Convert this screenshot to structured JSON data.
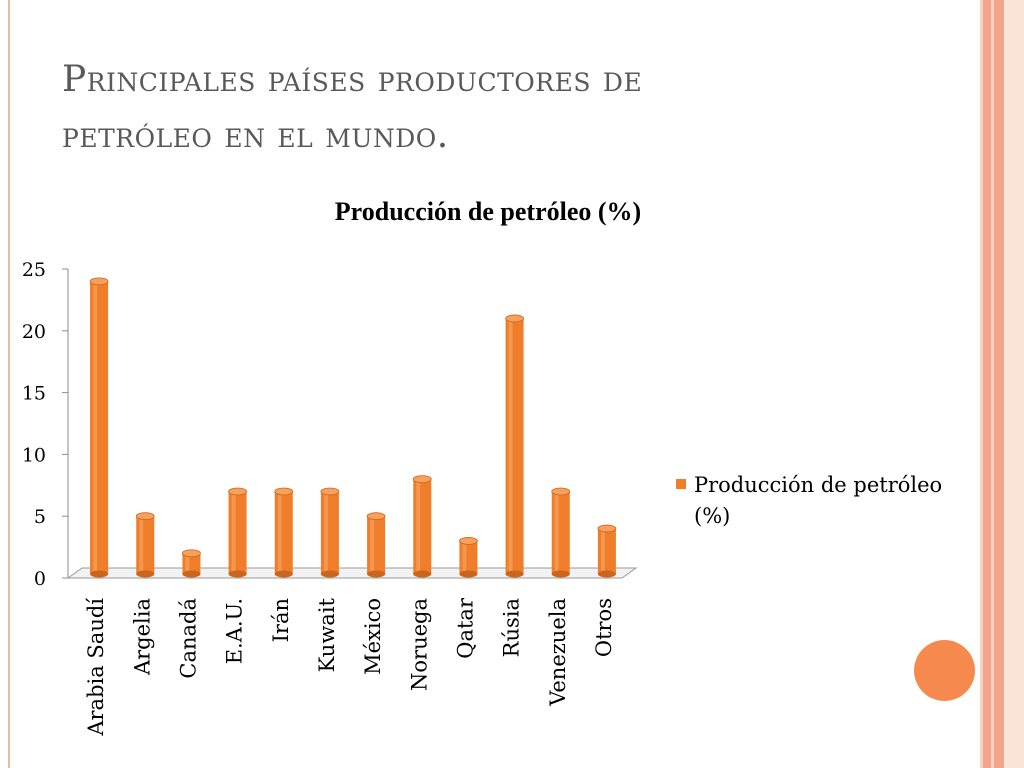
{
  "slide": {
    "title_line1": "Principales países productores de",
    "title_line2": "petróleo en el mundo."
  },
  "colors": {
    "bar": "#ef7d2a",
    "bar_dark": "#c9651d",
    "bar_light": "#f7a15c",
    "accent_dot": "#f6894e",
    "stripe_colors": [
      "#f9d2c4",
      "#f3a48b",
      "#f9d2c4",
      "#f3a48b",
      "#fbe3da"
    ]
  },
  "chart_data": {
    "type": "bar",
    "title": "Producción de petróleo (%)",
    "categories": [
      "Arabia Saudí",
      "Argelia",
      "Canadá",
      "E.A.U.",
      "Irán",
      "Kuwait",
      "México",
      "Noruega",
      "Qatar",
      "Rúsia",
      "Venezuela",
      "Otros"
    ],
    "series": [
      {
        "name": "Producción de petróleo (%)",
        "values": [
          24,
          5,
          2,
          7,
          7,
          7,
          5,
          8,
          3,
          21,
          7,
          4
        ]
      }
    ],
    "ylim": [
      0,
      25
    ],
    "yticks": [
      "0",
      "5",
      "10",
      "15",
      "20",
      "25"
    ],
    "legend_position": "right",
    "legend_lines": [
      "Producción de petróleo",
      "(%)"
    ],
    "grid": false
  }
}
